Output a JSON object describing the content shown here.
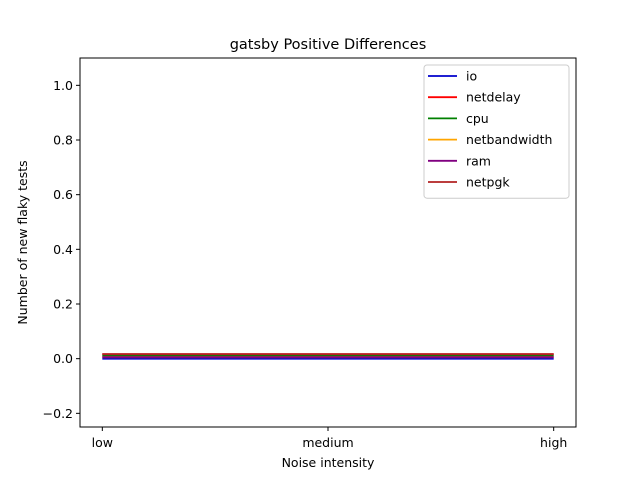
{
  "chart_data": {
    "type": "line",
    "title": "gatsby Positive Differences",
    "xlabel": "Noise intensity",
    "ylabel": "Number of new flaky tests",
    "categories": [
      "low",
      "medium",
      "high"
    ],
    "ylim": [
      -0.25,
      1.1
    ],
    "yticks": [
      -0.2,
      0.0,
      0.2,
      0.4,
      0.6,
      0.8,
      1.0
    ],
    "ytick_labels": [
      "−0.2",
      "0.0",
      "0.2",
      "0.4",
      "0.6",
      "0.8",
      "1.0"
    ],
    "grid": false,
    "legend_position": "top-right",
    "series": [
      {
        "name": "io",
        "color": "#0000cc",
        "values": [
          0,
          0,
          0
        ]
      },
      {
        "name": "netdelay",
        "color": "#ff0000",
        "values": [
          0,
          0,
          0
        ]
      },
      {
        "name": "cpu",
        "color": "#008000",
        "values": [
          0,
          0,
          0
        ]
      },
      {
        "name": "netbandwidth",
        "color": "#ffa500",
        "values": [
          0,
          0,
          0
        ]
      },
      {
        "name": "ram",
        "color": "#800080",
        "values": [
          0,
          0,
          0
        ]
      },
      {
        "name": "netpgk",
        "color": "#b22222",
        "values": [
          0,
          0,
          0
        ]
      }
    ]
  }
}
